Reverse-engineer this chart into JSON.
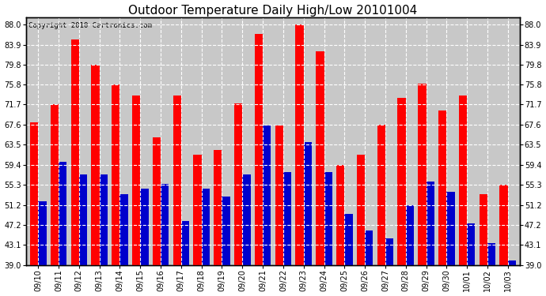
{
  "title": "Outdoor Temperature Daily High/Low 20101004",
  "copyright": "Copyright 2010 Cartronics.com",
  "dates": [
    "09/10",
    "09/11",
    "09/12",
    "09/13",
    "09/14",
    "09/15",
    "09/16",
    "09/17",
    "09/18",
    "09/19",
    "09/20",
    "09/21",
    "09/22",
    "09/23",
    "09/24",
    "09/25",
    "09/26",
    "09/27",
    "09/28",
    "09/29",
    "09/30",
    "10/01",
    "10/02",
    "10/03"
  ],
  "highs": [
    68.0,
    71.7,
    85.0,
    79.8,
    75.8,
    73.5,
    65.0,
    73.5,
    61.5,
    62.5,
    72.0,
    86.0,
    67.5,
    88.0,
    82.5,
    59.4,
    61.5,
    67.6,
    73.0,
    76.0,
    70.5,
    73.5,
    53.5,
    55.3
  ],
  "lows": [
    52.0,
    60.0,
    57.5,
    57.5,
    53.5,
    54.5,
    55.5,
    48.0,
    54.5,
    53.0,
    57.5,
    67.5,
    58.0,
    64.0,
    58.0,
    49.5,
    46.0,
    44.5,
    51.2,
    56.0,
    54.0,
    47.5,
    43.5,
    40.0
  ],
  "high_color": "#ff0000",
  "low_color": "#0000cc",
  "background_color": "#ffffff",
  "plot_bg_color": "#c8c8c8",
  "grid_color": "#ffffff",
  "yticks": [
    39.0,
    43.1,
    47.2,
    51.2,
    55.3,
    59.4,
    63.5,
    67.6,
    71.7,
    75.8,
    79.8,
    83.9,
    88.0
  ],
  "ymin": 39.0,
  "ymax": 89.5,
  "bar_width": 0.4,
  "title_fontsize": 11,
  "tick_fontsize": 7,
  "copyright_fontsize": 6.5
}
